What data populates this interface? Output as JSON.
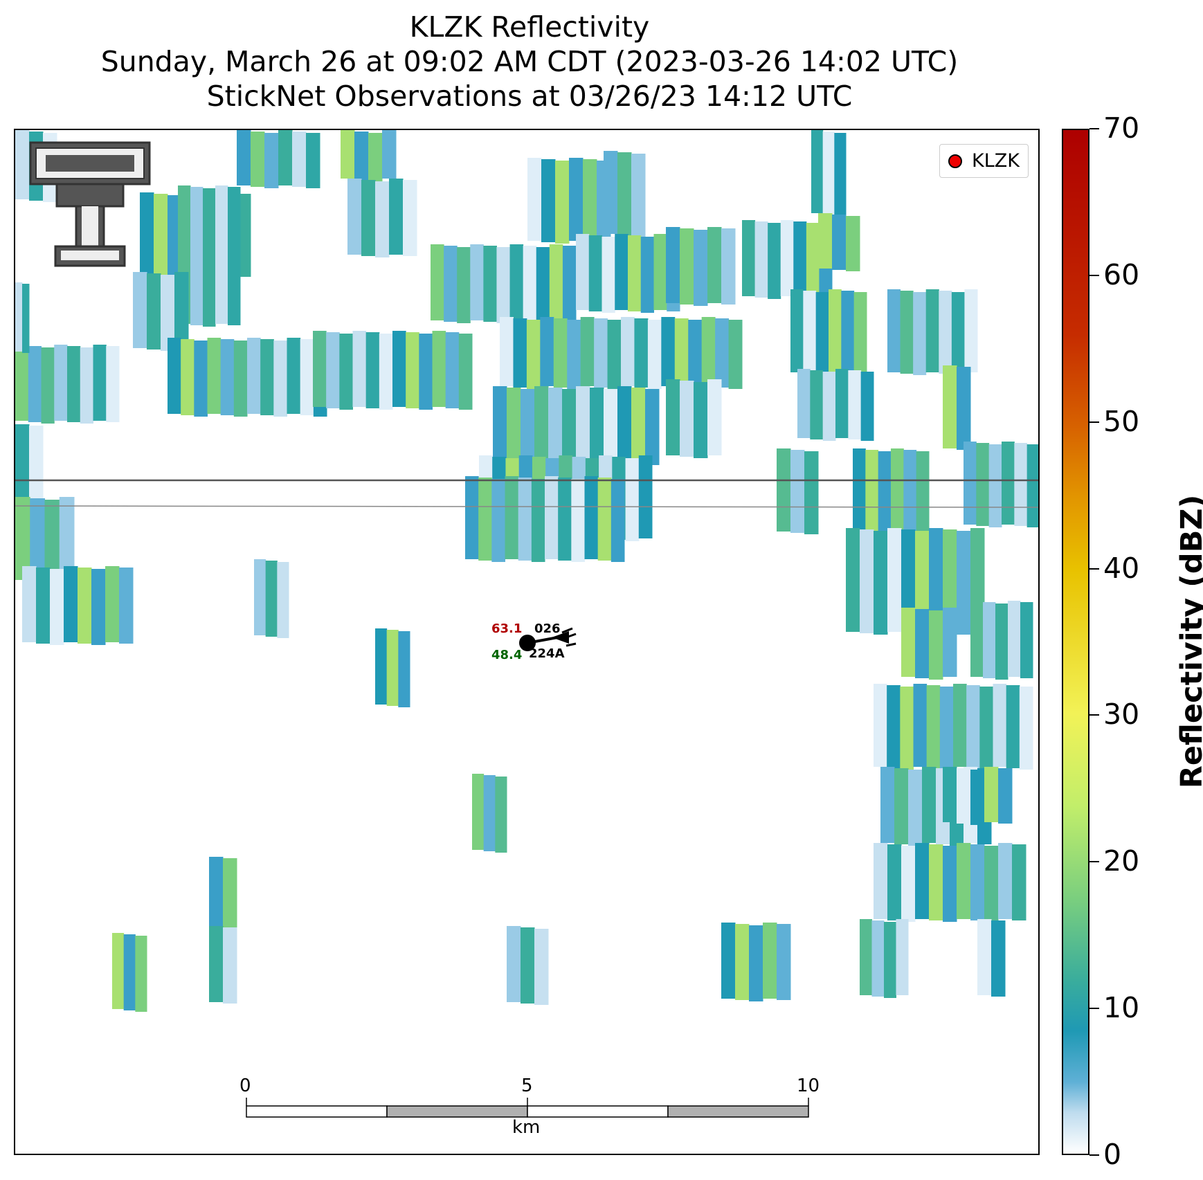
{
  "title": {
    "line1": "KLZK Reflectivity",
    "line2": "Sunday, March 26 at 09:02 AM CDT (2023-03-26 14:02 UTC)",
    "line3": "StickNet Observations at 03/26/23 14:12 UTC"
  },
  "legend": {
    "label": "KLZK",
    "marker_color": "#e00000"
  },
  "station": {
    "temperature": "63.1",
    "dewpoint": "48.4",
    "pressure": "026",
    "id": "224A",
    "temperature_color": "#b00000",
    "dewpoint_color": "#006400"
  },
  "scale_bar": {
    "ticks": [
      "0",
      "5",
      "10"
    ],
    "unit": "km"
  },
  "colorbar": {
    "label": "Reflectivity (dBZ)",
    "ticks": [
      "0",
      "10",
      "20",
      "30",
      "40",
      "50",
      "60",
      "70"
    ],
    "range": [
      0,
      70
    ]
  },
  "logo": {
    "name": "Texas Tech Double T"
  }
}
